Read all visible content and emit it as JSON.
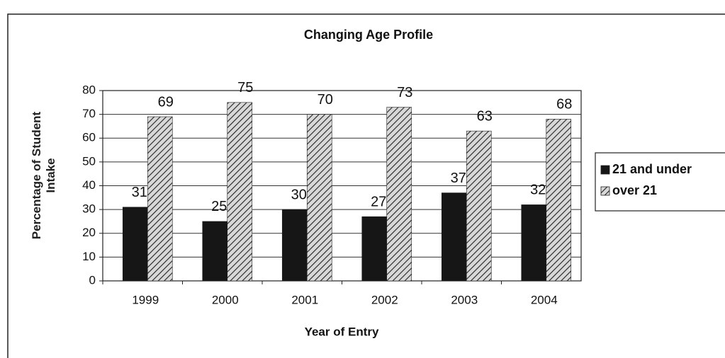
{
  "chart_data": {
    "type": "bar",
    "title": "Changing Age Profile",
    "x_label": "Year of Entry",
    "y_label": "Percentage of Student Intake",
    "categories": [
      "1999",
      "2000",
      "2001",
      "2002",
      "2003",
      "2004"
    ],
    "series": [
      {
        "name": "21 and under",
        "color": "#161616",
        "hatch": false,
        "values": [
          31,
          25,
          30,
          27,
          37,
          32
        ]
      },
      {
        "name": "over 21",
        "color": "#bdbdbd",
        "hatch": true,
        "values": [
          69,
          75,
          70,
          73,
          63,
          68
        ]
      }
    ],
    "ylim": [
      0,
      80
    ],
    "yticks": [
      0,
      10,
      20,
      30,
      40,
      50,
      60,
      70,
      80
    ],
    "grid": true,
    "legend": "right"
  }
}
